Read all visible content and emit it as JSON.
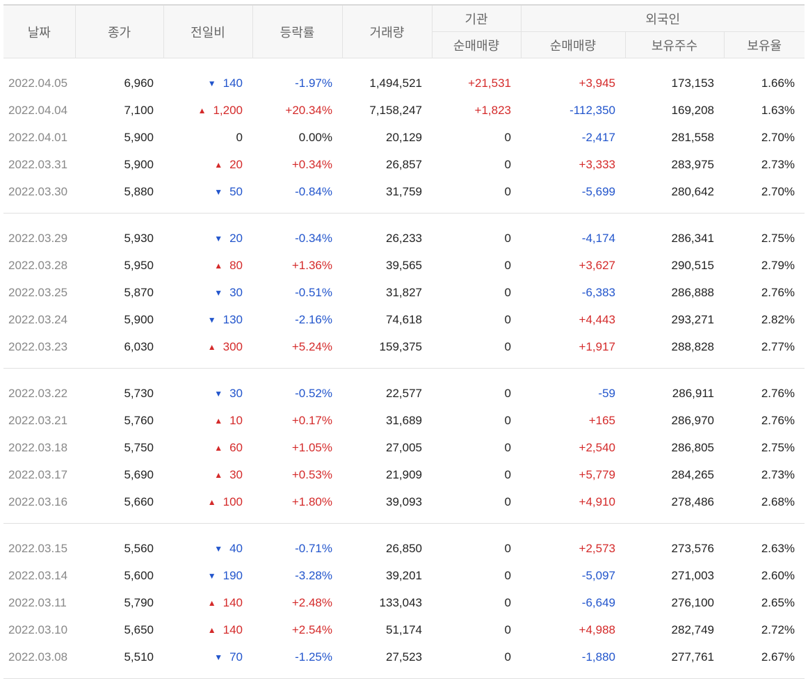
{
  "headers": {
    "date": "날짜",
    "close": "종가",
    "change": "전일비",
    "rate": "등락률",
    "volume": "거래량",
    "institution": "기관",
    "foreign": "외국인",
    "inst_net": "순매매량",
    "frgn_net": "순매매량",
    "frgn_hold": "보유주수",
    "frgn_ratio": "보유율"
  },
  "colors": {
    "up": "#d42a2a",
    "down": "#2255cc",
    "neutral": "#222222"
  },
  "icons": {
    "up": "triangle-up-icon",
    "down": "triangle-down-icon"
  },
  "groups": [
    [
      {
        "date": "2022.04.05",
        "close": "6,960",
        "dir": "down",
        "change": "140",
        "rate": "-1.97%",
        "volume": "1,494,521",
        "inst": "+21,531",
        "frgn": "+3,945",
        "hold": "173,153",
        "ratio": "1.66%"
      },
      {
        "date": "2022.04.04",
        "close": "7,100",
        "dir": "up",
        "change": "1,200",
        "rate": "+20.34%",
        "volume": "7,158,247",
        "inst": "+1,823",
        "frgn": "-112,350",
        "hold": "169,208",
        "ratio": "1.63%"
      },
      {
        "date": "2022.04.01",
        "close": "5,900",
        "dir": "flat",
        "change": "0",
        "rate": "0.00%",
        "volume": "20,129",
        "inst": "0",
        "frgn": "-2,417",
        "hold": "281,558",
        "ratio": "2.70%"
      },
      {
        "date": "2022.03.31",
        "close": "5,900",
        "dir": "up",
        "change": "20",
        "rate": "+0.34%",
        "volume": "26,857",
        "inst": "0",
        "frgn": "+3,333",
        "hold": "283,975",
        "ratio": "2.73%"
      },
      {
        "date": "2022.03.30",
        "close": "5,880",
        "dir": "down",
        "change": "50",
        "rate": "-0.84%",
        "volume": "31,759",
        "inst": "0",
        "frgn": "-5,699",
        "hold": "280,642",
        "ratio": "2.70%"
      }
    ],
    [
      {
        "date": "2022.03.29",
        "close": "5,930",
        "dir": "down",
        "change": "20",
        "rate": "-0.34%",
        "volume": "26,233",
        "inst": "0",
        "frgn": "-4,174",
        "hold": "286,341",
        "ratio": "2.75%"
      },
      {
        "date": "2022.03.28",
        "close": "5,950",
        "dir": "up",
        "change": "80",
        "rate": "+1.36%",
        "volume": "39,565",
        "inst": "0",
        "frgn": "+3,627",
        "hold": "290,515",
        "ratio": "2.79%"
      },
      {
        "date": "2022.03.25",
        "close": "5,870",
        "dir": "down",
        "change": "30",
        "rate": "-0.51%",
        "volume": "31,827",
        "inst": "0",
        "frgn": "-6,383",
        "hold": "286,888",
        "ratio": "2.76%"
      },
      {
        "date": "2022.03.24",
        "close": "5,900",
        "dir": "down",
        "change": "130",
        "rate": "-2.16%",
        "volume": "74,618",
        "inst": "0",
        "frgn": "+4,443",
        "hold": "293,271",
        "ratio": "2.82%"
      },
      {
        "date": "2022.03.23",
        "close": "6,030",
        "dir": "up",
        "change": "300",
        "rate": "+5.24%",
        "volume": "159,375",
        "inst": "0",
        "frgn": "+1,917",
        "hold": "288,828",
        "ratio": "2.77%"
      }
    ],
    [
      {
        "date": "2022.03.22",
        "close": "5,730",
        "dir": "down",
        "change": "30",
        "rate": "-0.52%",
        "volume": "22,577",
        "inst": "0",
        "frgn": "-59",
        "hold": "286,911",
        "ratio": "2.76%"
      },
      {
        "date": "2022.03.21",
        "close": "5,760",
        "dir": "up",
        "change": "10",
        "rate": "+0.17%",
        "volume": "31,689",
        "inst": "0",
        "frgn": "+165",
        "hold": "286,970",
        "ratio": "2.76%"
      },
      {
        "date": "2022.03.18",
        "close": "5,750",
        "dir": "up",
        "change": "60",
        "rate": "+1.05%",
        "volume": "27,005",
        "inst": "0",
        "frgn": "+2,540",
        "hold": "286,805",
        "ratio": "2.75%"
      },
      {
        "date": "2022.03.17",
        "close": "5,690",
        "dir": "up",
        "change": "30",
        "rate": "+0.53%",
        "volume": "21,909",
        "inst": "0",
        "frgn": "+5,779",
        "hold": "284,265",
        "ratio": "2.73%"
      },
      {
        "date": "2022.03.16",
        "close": "5,660",
        "dir": "up",
        "change": "100",
        "rate": "+1.80%",
        "volume": "39,093",
        "inst": "0",
        "frgn": "+4,910",
        "hold": "278,486",
        "ratio": "2.68%"
      }
    ],
    [
      {
        "date": "2022.03.15",
        "close": "5,560",
        "dir": "down",
        "change": "40",
        "rate": "-0.71%",
        "volume": "26,850",
        "inst": "0",
        "frgn": "+2,573",
        "hold": "273,576",
        "ratio": "2.63%"
      },
      {
        "date": "2022.03.14",
        "close": "5,600",
        "dir": "down",
        "change": "190",
        "rate": "-3.28%",
        "volume": "39,201",
        "inst": "0",
        "frgn": "-5,097",
        "hold": "271,003",
        "ratio": "2.60%"
      },
      {
        "date": "2022.03.11",
        "close": "5,790",
        "dir": "up",
        "change": "140",
        "rate": "+2.48%",
        "volume": "133,043",
        "inst": "0",
        "frgn": "-6,649",
        "hold": "276,100",
        "ratio": "2.65%"
      },
      {
        "date": "2022.03.10",
        "close": "5,650",
        "dir": "up",
        "change": "140",
        "rate": "+2.54%",
        "volume": "51,174",
        "inst": "0",
        "frgn": "+4,988",
        "hold": "282,749",
        "ratio": "2.72%"
      },
      {
        "date": "2022.03.08",
        "close": "5,510",
        "dir": "down",
        "change": "70",
        "rate": "-1.25%",
        "volume": "27,523",
        "inst": "0",
        "frgn": "-1,880",
        "hold": "277,761",
        "ratio": "2.67%"
      }
    ]
  ]
}
